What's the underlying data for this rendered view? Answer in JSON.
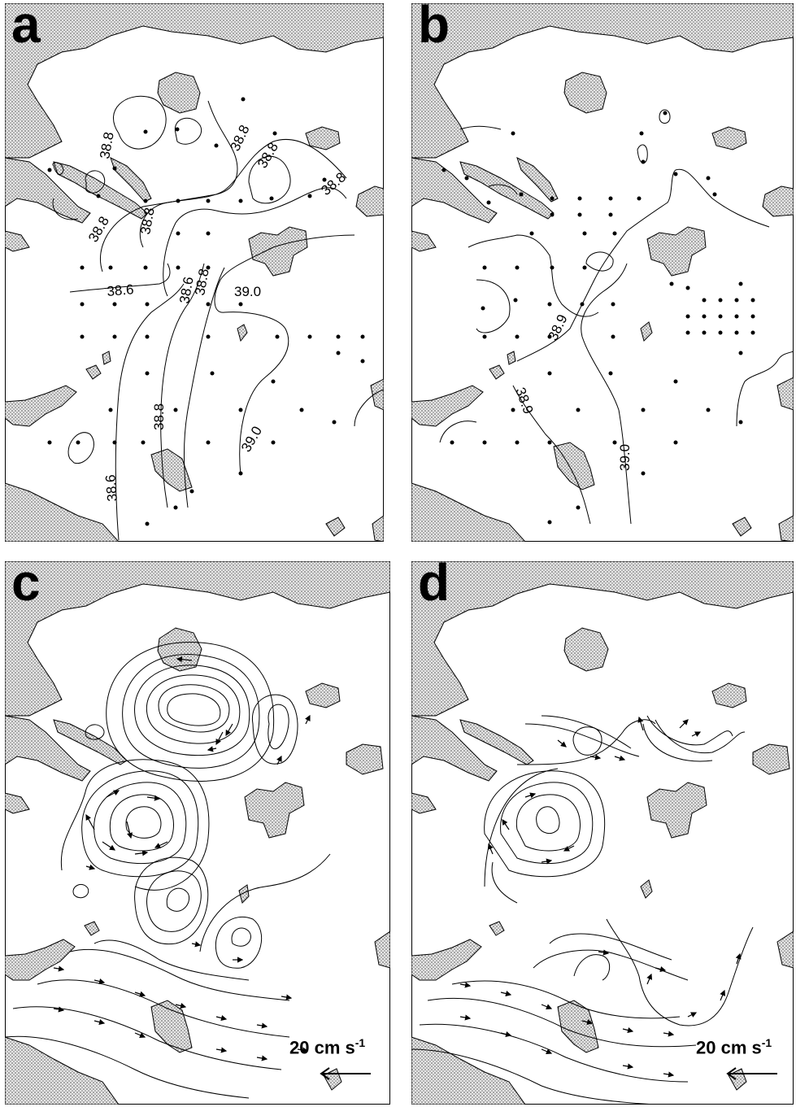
{
  "panels": [
    {
      "id": "a",
      "letter": "a",
      "contour_labels": [
        "38.8",
        "38.8",
        "38.8",
        "38.8",
        "38.8",
        "38.8",
        "38.6",
        "38.6",
        "38.8",
        "39.0",
        "38.8",
        "39.0",
        "38.6"
      ]
    },
    {
      "id": "b",
      "letter": "b",
      "contour_labels": [
        "38.9",
        "38.9",
        "39.0"
      ]
    },
    {
      "id": "c",
      "letter": "c",
      "scale": {
        "value": "20 cm s",
        "exp": "-1"
      }
    },
    {
      "id": "d",
      "letter": "d",
      "scale": {
        "value": "20 cm s",
        "exp": "-1"
      }
    }
  ],
  "colors": {
    "land": "#b8b8b8",
    "line": "#000000",
    "water": "#ffffff"
  }
}
